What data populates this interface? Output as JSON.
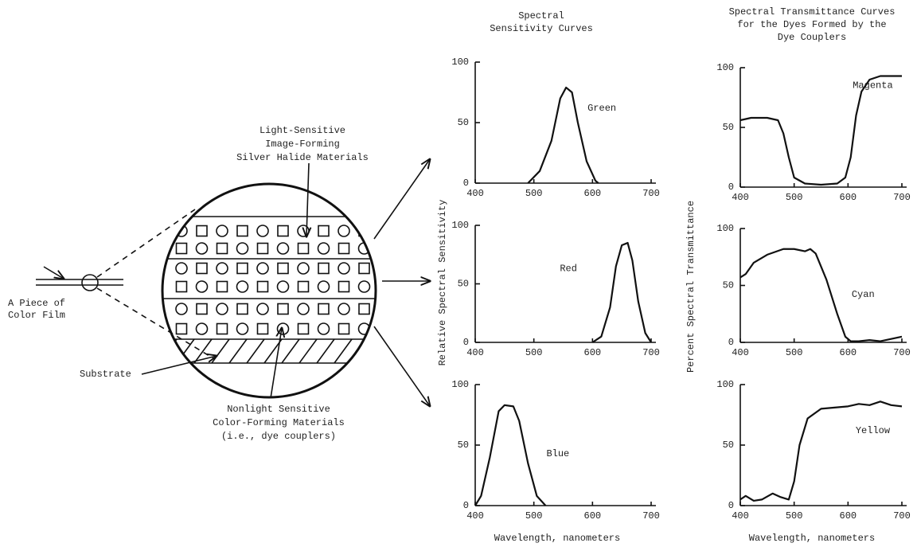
{
  "diagram": {
    "film_label": [
      "A Piece of",
      "Color Film"
    ],
    "silver_label": [
      "Light-Sensitive",
      "Image-Forming",
      "Silver Halide Materials"
    ],
    "substrate_label": "Substrate",
    "coupler_label": [
      "Nonlight Sensitive",
      "Color-Forming Materials",
      "(i.e., dye couplers)"
    ]
  },
  "sensitivity_group": {
    "title": [
      "Spectral",
      "Sensitivity Curves"
    ],
    "ylabel": "Relative Spectral Sensitivity",
    "xlabel": "Wavelength, nanometers"
  },
  "transmittance_group": {
    "title": [
      "Spectral Transmittance Curves",
      "for the Dyes Formed by the",
      "Dye Couplers"
    ],
    "ylabel": "Percent Spectral Transmittance",
    "xlabel": "Wavelength, nanometers"
  },
  "chart_data": [
    {
      "type": "line",
      "annotation": "Green",
      "color": "#111",
      "xlim": [
        400,
        700
      ],
      "ylim": [
        0,
        100
      ],
      "xticks": [
        400,
        500,
        600,
        700
      ],
      "yticks": [
        0,
        50,
        100
      ],
      "x": [
        490,
        510,
        530,
        545,
        555,
        565,
        575,
        590,
        605,
        610
      ],
      "values": [
        0,
        10,
        35,
        70,
        79,
        75,
        50,
        18,
        2,
        0
      ]
    },
    {
      "type": "line",
      "annotation": "Red",
      "color": "#111",
      "xlim": [
        400,
        700
      ],
      "ylim": [
        0,
        100
      ],
      "xticks": [
        400,
        500,
        600,
        700
      ],
      "yticks": [
        0,
        50,
        100
      ],
      "x": [
        600,
        615,
        630,
        640,
        650,
        660,
        668,
        678,
        690,
        700
      ],
      "values": [
        0,
        5,
        30,
        65,
        83,
        85,
        70,
        35,
        8,
        0
      ]
    },
    {
      "type": "line",
      "annotation": "Blue",
      "color": "#111",
      "xlim": [
        400,
        700
      ],
      "ylim": [
        0,
        100
      ],
      "xticks": [
        400,
        500,
        600,
        700
      ],
      "yticks": [
        0,
        50,
        100
      ],
      "x": [
        400,
        410,
        425,
        440,
        450,
        465,
        475,
        490,
        505,
        520
      ],
      "values": [
        0,
        8,
        40,
        78,
        83,
        82,
        70,
        35,
        8,
        0
      ]
    },
    {
      "type": "line",
      "annotation": "Magenta",
      "color": "#111",
      "xlim": [
        400,
        700
      ],
      "ylim": [
        0,
        100
      ],
      "xticks": [
        400,
        500,
        600,
        700
      ],
      "yticks": [
        0,
        50,
        100
      ],
      "x": [
        400,
        420,
        450,
        470,
        480,
        490,
        500,
        520,
        550,
        580,
        595,
        605,
        615,
        625,
        640,
        660,
        700
      ],
      "values": [
        56,
        58,
        58,
        56,
        45,
        25,
        8,
        3,
        2,
        3,
        8,
        25,
        60,
        80,
        90,
        93,
        93
      ]
    },
    {
      "type": "line",
      "annotation": "Cyan",
      "color": "#111",
      "xlim": [
        400,
        700
      ],
      "ylim": [
        0,
        100
      ],
      "xticks": [
        400,
        500,
        600,
        700
      ],
      "yticks": [
        0,
        50,
        100
      ],
      "x": [
        400,
        410,
        425,
        450,
        480,
        500,
        520,
        530,
        540,
        560,
        580,
        595,
        605,
        620,
        640,
        660,
        680,
        700
      ],
      "values": [
        57,
        60,
        70,
        77,
        82,
        82,
        80,
        82,
        78,
        55,
        25,
        5,
        1,
        1,
        2,
        1,
        3,
        5
      ]
    },
    {
      "type": "line",
      "annotation": "Yellow",
      "color": "#111",
      "xlim": [
        400,
        700
      ],
      "ylim": [
        0,
        100
      ],
      "xticks": [
        400,
        500,
        600,
        700
      ],
      "yticks": [
        0,
        50,
        100
      ],
      "x": [
        400,
        410,
        425,
        440,
        460,
        475,
        490,
        500,
        510,
        525,
        550,
        600,
        620,
        640,
        660,
        680,
        700
      ],
      "values": [
        5,
        8,
        4,
        5,
        10,
        7,
        5,
        20,
        50,
        72,
        80,
        82,
        84,
        83,
        86,
        83,
        82
      ]
    }
  ]
}
